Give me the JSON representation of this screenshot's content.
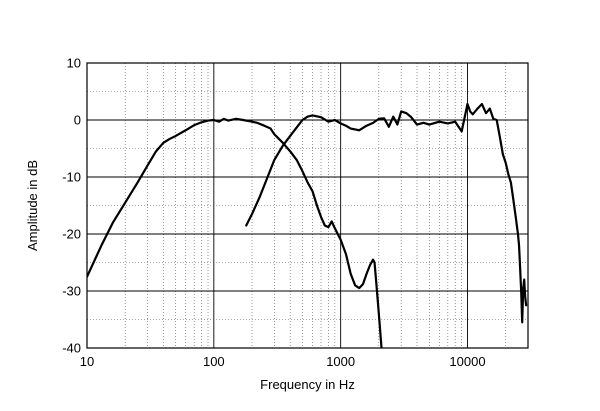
{
  "chart_data": {
    "type": "line",
    "title": "",
    "xlabel": "Frequency in Hz",
    "ylabel": "Amplitude in dB",
    "x_scale": "log",
    "xlim": [
      10,
      30000
    ],
    "ylim": [
      -40,
      10
    ],
    "x_ticks": [
      10,
      100,
      1000,
      10000
    ],
    "x_tick_labels": [
      "10",
      "100",
      "1000",
      "10000"
    ],
    "y_ticks": [
      10,
      0,
      -10,
      -20,
      -30,
      -40
    ],
    "y_tick_labels": [
      "10",
      "0",
      "-10",
      "-20",
      "-30",
      "-40"
    ],
    "grid": true,
    "legend": "none",
    "series": [
      {
        "values": [
          [
            10,
            -27.5
          ],
          [
            13,
            -22
          ],
          [
            16,
            -18
          ],
          [
            20,
            -14.5
          ],
          [
            25,
            -11
          ],
          [
            30,
            -8
          ],
          [
            35,
            -5.5
          ],
          [
            40,
            -4
          ],
          [
            45,
            -3.3
          ],
          [
            50,
            -2.8
          ],
          [
            60,
            -1.8
          ],
          [
            70,
            -0.9
          ],
          [
            80,
            -0.4
          ],
          [
            90,
            -0.1
          ],
          [
            100,
            0
          ],
          [
            110,
            -0.3
          ],
          [
            120,
            0.2
          ],
          [
            130,
            -0.1
          ],
          [
            150,
            0.2
          ],
          [
            170,
            0
          ],
          [
            200,
            -0.3
          ],
          [
            220,
            -0.5
          ],
          [
            250,
            -1
          ],
          [
            280,
            -1.5
          ],
          [
            300,
            -2.5
          ],
          [
            350,
            -4
          ],
          [
            400,
            -5.5
          ],
          [
            450,
            -7
          ],
          [
            500,
            -9
          ],
          [
            550,
            -11
          ],
          [
            600,
            -12.5
          ],
          [
            650,
            -15
          ],
          [
            700,
            -17
          ],
          [
            750,
            -18.5
          ],
          [
            800,
            -18.8
          ],
          [
            850,
            -17.8
          ],
          [
            900,
            -19
          ],
          [
            1000,
            -21
          ],
          [
            1100,
            -23.5
          ],
          [
            1200,
            -27
          ],
          [
            1300,
            -29
          ],
          [
            1400,
            -29.5
          ],
          [
            1500,
            -28.8
          ],
          [
            1600,
            -27
          ],
          [
            1700,
            -25.5
          ],
          [
            1800,
            -24.5
          ],
          [
            1850,
            -25
          ],
          [
            1900,
            -28
          ],
          [
            2000,
            -34
          ],
          [
            2100,
            -40
          ]
        ]
      },
      {
        "values": [
          [
            180,
            -18.5
          ],
          [
            200,
            -16.5
          ],
          [
            230,
            -13.5
          ],
          [
            260,
            -10.5
          ],
          [
            300,
            -7
          ],
          [
            350,
            -4.5
          ],
          [
            400,
            -2.8
          ],
          [
            450,
            -1.3
          ],
          [
            500,
            0
          ],
          [
            550,
            0.6
          ],
          [
            600,
            0.8
          ],
          [
            700,
            0.5
          ],
          [
            800,
            -0.3
          ],
          [
            900,
            0
          ],
          [
            1000,
            -0.6
          ],
          [
            1100,
            -1
          ],
          [
            1200,
            -1.5
          ],
          [
            1400,
            -1.8
          ],
          [
            1600,
            -1
          ],
          [
            1800,
            -0.5
          ],
          [
            2000,
            0.2
          ],
          [
            2200,
            0.3
          ],
          [
            2400,
            -1.2
          ],
          [
            2600,
            0.6
          ],
          [
            2800,
            -0.8
          ],
          [
            3000,
            1.5
          ],
          [
            3300,
            1.2
          ],
          [
            3600,
            0.5
          ],
          [
            4000,
            -0.8
          ],
          [
            4500,
            -0.5
          ],
          [
            5000,
            -0.8
          ],
          [
            6000,
            -0.3
          ],
          [
            7000,
            -0.6
          ],
          [
            8000,
            -0.3
          ],
          [
            9000,
            -2
          ],
          [
            10000,
            2.8
          ],
          [
            10500,
            1.5
          ],
          [
            11000,
            1
          ],
          [
            12000,
            2
          ],
          [
            13000,
            2.8
          ],
          [
            14000,
            1.2
          ],
          [
            15000,
            2
          ],
          [
            16000,
            0.2
          ],
          [
            17000,
            0
          ],
          [
            18000,
            -3
          ],
          [
            19000,
            -6
          ],
          [
            20000,
            -7.5
          ],
          [
            21000,
            -9.5
          ],
          [
            22000,
            -11
          ],
          [
            23000,
            -14
          ],
          [
            24000,
            -17
          ],
          [
            25000,
            -20
          ],
          [
            25500,
            -22
          ],
          [
            26000,
            -26
          ],
          [
            26500,
            -30
          ],
          [
            27000,
            -35.5
          ],
          [
            27500,
            -29.5
          ],
          [
            28000,
            -28
          ],
          [
            28500,
            -31
          ],
          [
            29000,
            -32.5
          ]
        ]
      }
    ]
  }
}
